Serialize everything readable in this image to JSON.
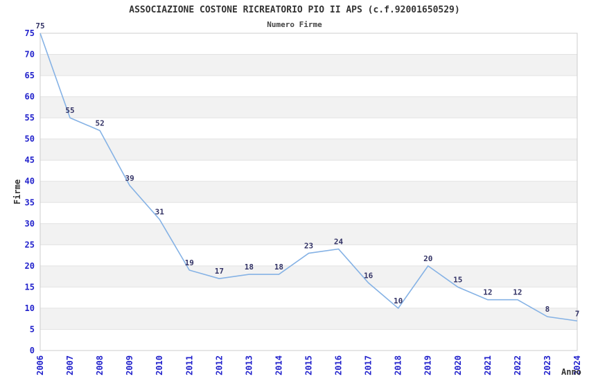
{
  "header": {
    "title": "ASSOCIAZIONE COSTONE RICREATORIO PIO II APS (c.f.92001650529)",
    "subtitle": "Numero Firme"
  },
  "chart_data": {
    "type": "line",
    "title": "ASSOCIAZIONE COSTONE RICREATORIO PIO II APS (c.f.92001650529)",
    "subtitle": "Numero Firme",
    "xlabel": "Anno",
    "ylabel": "Firme",
    "categories": [
      "2006",
      "2007",
      "2008",
      "2009",
      "2010",
      "2011",
      "2012",
      "2013",
      "2014",
      "2015",
      "2016",
      "2017",
      "2018",
      "2019",
      "2020",
      "2021",
      "2022",
      "2023",
      "2024"
    ],
    "series": [
      {
        "name": "Numero Firme",
        "values": [
          75,
          55,
          52,
          39,
          31,
          19,
          17,
          18,
          18,
          23,
          24,
          16,
          10,
          20,
          15,
          12,
          12,
          8,
          7
        ]
      }
    ],
    "ylim": [
      0,
      75
    ],
    "ytick_step": 5,
    "grid": true,
    "band_pattern": "alternate-horizontal",
    "legend": "none",
    "data_labels": true,
    "colors": {
      "line": "#85b2e5",
      "tick_label": "#2222cc",
      "data_label": "#333366",
      "axis_title": "#333333",
      "band": "#f2f2f2",
      "gridline": "#e2e2e2",
      "border": "#cccccc",
      "background": "#ffffff"
    }
  }
}
